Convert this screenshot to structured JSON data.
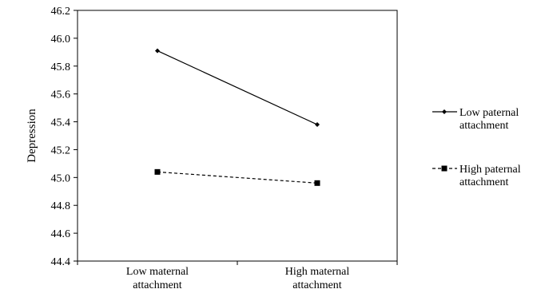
{
  "chart_data": {
    "type": "line",
    "title": "",
    "xlabel": "",
    "ylabel": "Depression",
    "ylim": [
      44.4,
      46.2
    ],
    "yticks": [
      "44.4",
      "44.6",
      "44.8",
      "45.0",
      "45.2",
      "45.4",
      "45.6",
      "45.8",
      "46.0",
      "46.2"
    ],
    "categories": [
      [
        "Low maternal",
        "attachment"
      ],
      [
        "High maternal",
        "attachment"
      ]
    ],
    "series": [
      {
        "name": [
          "Low paternal",
          "attachment"
        ],
        "values": [
          45.91,
          45.38
        ],
        "line_style": "solid",
        "marker": "diamond",
        "color": "#000000"
      },
      {
        "name": [
          "High paternal",
          "attachment"
        ],
        "values": [
          45.04,
          44.96
        ],
        "line_style": "dashed",
        "marker": "square",
        "color": "#000000"
      }
    ],
    "grid": false,
    "legend_position": "right"
  }
}
